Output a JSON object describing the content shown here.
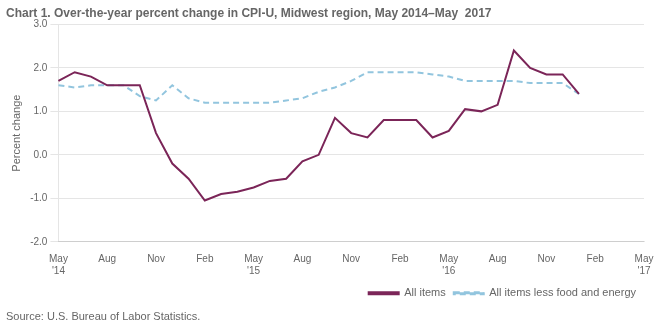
{
  "chart_data": {
    "type": "line",
    "title": "Chart 1. Over-the-year percent change in CPI-U, Midwest region, May 2014–May  2017",
    "y_label": "Percent change",
    "source": "Source: U.S. Bureau of Labor Statistics.",
    "categories": [
      "May\n'14",
      null,
      null,
      "Aug",
      null,
      null,
      "Nov",
      null,
      null,
      "Feb",
      null,
      null,
      "May\n'15",
      null,
      null,
      "Aug",
      null,
      null,
      "Nov",
      null,
      null,
      "Feb",
      null,
      null,
      "May\n'16",
      null,
      null,
      "Aug",
      null,
      null,
      "Nov",
      null,
      null,
      "Feb",
      null,
      null,
      "May\n'17"
    ],
    "series": [
      {
        "name": "All items",
        "color": "#7b2558",
        "line_style": "solid",
        "values": [
          1.7,
          1.9,
          1.8,
          1.6,
          1.6,
          1.6,
          0.5,
          -0.2,
          -0.55,
          -1.05,
          -0.9,
          -0.85,
          -0.75,
          -0.6,
          -0.55,
          -0.15,
          0.0,
          0.85,
          0.5,
          0.4,
          0.8,
          0.8,
          0.8,
          0.4,
          0.55,
          1.05,
          1.0,
          1.15,
          2.4,
          2.0,
          1.85,
          1.85,
          1.4,
          null,
          null,
          null,
          null
        ]
      },
      {
        "name": "All items less food and energy",
        "color": "#92c5de",
        "line_style": "dashed",
        "values": [
          1.6,
          1.55,
          1.6,
          1.6,
          1.6,
          1.35,
          1.25,
          1.6,
          1.3,
          1.2,
          1.2,
          1.2,
          1.2,
          1.2,
          1.25,
          1.3,
          1.45,
          1.55,
          1.7,
          1.9,
          1.9,
          1.9,
          1.9,
          1.85,
          1.8,
          1.7,
          1.7,
          1.7,
          1.7,
          1.65,
          1.65,
          1.65,
          1.4,
          null,
          null,
          null,
          null
        ]
      }
    ],
    "ylim": [
      -2.0,
      3.0
    ],
    "yticks": [
      {
        "value": -2.0,
        "label": "-2.0"
      },
      {
        "value": -1.0,
        "label": "-1.0"
      },
      {
        "value": 0.0,
        "label": "0.0"
      },
      {
        "value": 1.0,
        "label": "1.0"
      },
      {
        "value": 2.0,
        "label": "2.0"
      },
      {
        "value": 3.0,
        "label": "3.0"
      }
    ],
    "grid": "y",
    "legend": "lower right"
  }
}
